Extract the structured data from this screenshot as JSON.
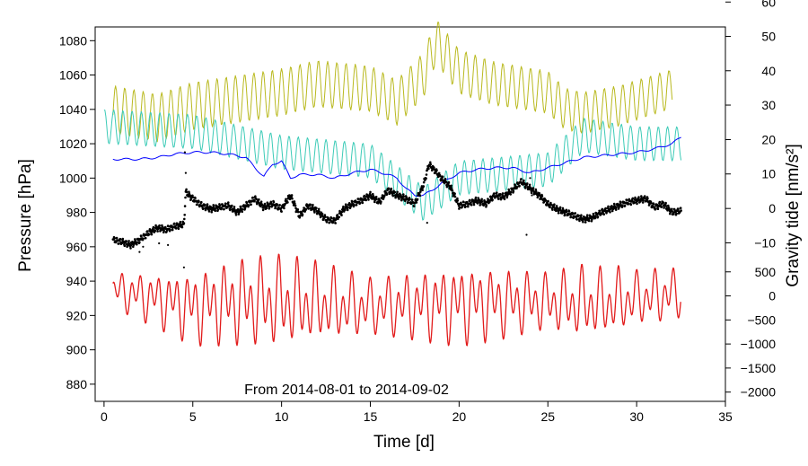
{
  "chart_data": {
    "type": "line",
    "annotation": "From 2014-08-01 to 2014-09-02",
    "x_axis": {
      "label": "Time [d]",
      "range": [
        -0.5,
        35
      ],
      "ticks": [
        0,
        5,
        10,
        15,
        20,
        25,
        30,
        35
      ]
    },
    "y_left": {
      "label": "Pressure [hPa]",
      "range": [
        870,
        1088
      ],
      "ticks": [
        880,
        900,
        920,
        940,
        960,
        980,
        1000,
        1020,
        1040,
        1060,
        1080
      ]
    },
    "y_right_upper": {
      "label": "Gravity tide [nm/s²]",
      "ticks": [
        -10,
        0,
        10,
        20,
        30,
        40,
        50,
        60
      ],
      "pressure_equiv": [
        962.3,
        982.3,
        1002.4,
        1022.4,
        1042.5,
        1062.5,
        1082.5,
        1102.5
      ]
    },
    "y_right_lower": {
      "ticks": [
        500,
        0,
        -500,
        -1000,
        -1500,
        -2000
      ],
      "pressure_equiv": [
        945.4,
        931.4,
        917.4,
        903.4,
        889.4,
        875.4
      ]
    },
    "series": [
      {
        "name": "pressure-observed",
        "color": "#000000",
        "style": "dots",
        "x": [
          0.5,
          1.0,
          1.5,
          2.0,
          2.5,
          3.0,
          3.5,
          4.0,
          4.5,
          4.6,
          5.0,
          5.5,
          6.0,
          6.5,
          7.0,
          7.5,
          8.0,
          8.5,
          9.0,
          9.5,
          10.0,
          10.5,
          11.0,
          11.5,
          12.0,
          12.5,
          13.0,
          13.5,
          14.0,
          14.5,
          15.0,
          15.5,
          16.0,
          16.5,
          17.0,
          17.5,
          18.0,
          18.3,
          18.5,
          19.0,
          19.5,
          20.0,
          20.5,
          21.0,
          21.5,
          22.0,
          22.5,
          23.0,
          23.5,
          24.0,
          24.5,
          25.0,
          25.5,
          26.0,
          26.5,
          27.0,
          27.5,
          28.0,
          28.5,
          29.0,
          29.5,
          30.0,
          30.5,
          31.0,
          31.5,
          32.0,
          32.5
        ],
        "y": [
          964,
          963,
          961,
          964,
          968,
          971,
          970,
          972,
          973,
          992,
          988,
          984,
          982,
          983,
          984,
          980,
          984,
          988,
          983,
          985,
          982,
          990,
          978,
          984,
          981,
          976,
          975,
          982,
          985,
          987,
          990,
          986,
          993,
          990,
          988,
          985,
          996,
          1008,
          1006,
          1000,
          995,
          984,
          985,
          987,
          985,
          990,
          989,
          993,
          998,
          994,
          990,
          985,
          982,
          980,
          978,
          976,
          977,
          980,
          982,
          984,
          986,
          987,
          988,
          983,
          985,
          980,
          981
        ]
      },
      {
        "name": "air-mass-gravity",
        "color": "#0000ff",
        "style": "line",
        "x": [
          0.5,
          2,
          3,
          4,
          5,
          6,
          7,
          8,
          8.5,
          9,
          9.5,
          10,
          10.5,
          11,
          12,
          13,
          14,
          15,
          16,
          16.5,
          17,
          17.5,
          18,
          18.5,
          19,
          19.5,
          20,
          21,
          22,
          23,
          24,
          25,
          26,
          27,
          28,
          29,
          30,
          31,
          32,
          32.5
        ],
        "y": [
          1011,
          1011,
          1012,
          1014,
          1015,
          1015,
          1014,
          1012,
          1006,
          1001,
          1008,
          1010,
          1000,
          1002,
          1002,
          1000,
          1003,
          1005,
          1002,
          1000,
          994,
          990,
          990,
          993,
          997,
          1000,
          1003,
          1005,
          1006,
          1006,
          1003,
          1006,
          1009,
          1012,
          1013,
          1014,
          1015,
          1017,
          1020,
          1024
        ]
      },
      {
        "name": "gravity-residual",
        "color": "#3ccbb7",
        "style": "line",
        "base_x": [
          0,
          5,
          10,
          15,
          18,
          20,
          25,
          27,
          30,
          32.5
        ],
        "base_y": [
          1030,
          1027,
          1015,
          1010,
          985,
          1000,
          1005,
          1025,
          1020,
          1020
        ],
        "amplitude": 10
      },
      {
        "name": "gravity-model",
        "color": "#b9b91e",
        "style": "line",
        "base_x": [
          0.5,
          3,
          5,
          10,
          12,
          15,
          16.5,
          18,
          18.7,
          20,
          22,
          25,
          26,
          27,
          29,
          32
        ],
        "base_y": [
          1040,
          1035,
          1042,
          1050,
          1055,
          1052,
          1044,
          1060,
          1080,
          1062,
          1055,
          1050,
          1040,
          1038,
          1042,
          1052
        ],
        "amplitude": 10
      },
      {
        "name": "gravity-tide",
        "color": "#e21b1b",
        "style": "line",
        "center_x": [
          0.5,
          5,
          7.5,
          10,
          15,
          20,
          25,
          28,
          30,
          32.5
        ],
        "center_y": [
          935,
          925,
          928,
          928,
          925,
          927,
          928,
          927,
          930,
          933
        ],
        "amplitude_x": [
          0.5,
          3,
          5,
          7.5,
          9,
          10,
          12,
          15,
          17,
          20,
          22,
          25,
          27,
          29,
          30,
          32,
          32.5
        ],
        "amplitude_y": [
          10,
          15,
          20,
          24,
          25,
          25,
          22,
          16,
          18,
          22,
          20,
          16,
          20,
          18,
          15,
          15,
          13
        ]
      }
    ]
  }
}
